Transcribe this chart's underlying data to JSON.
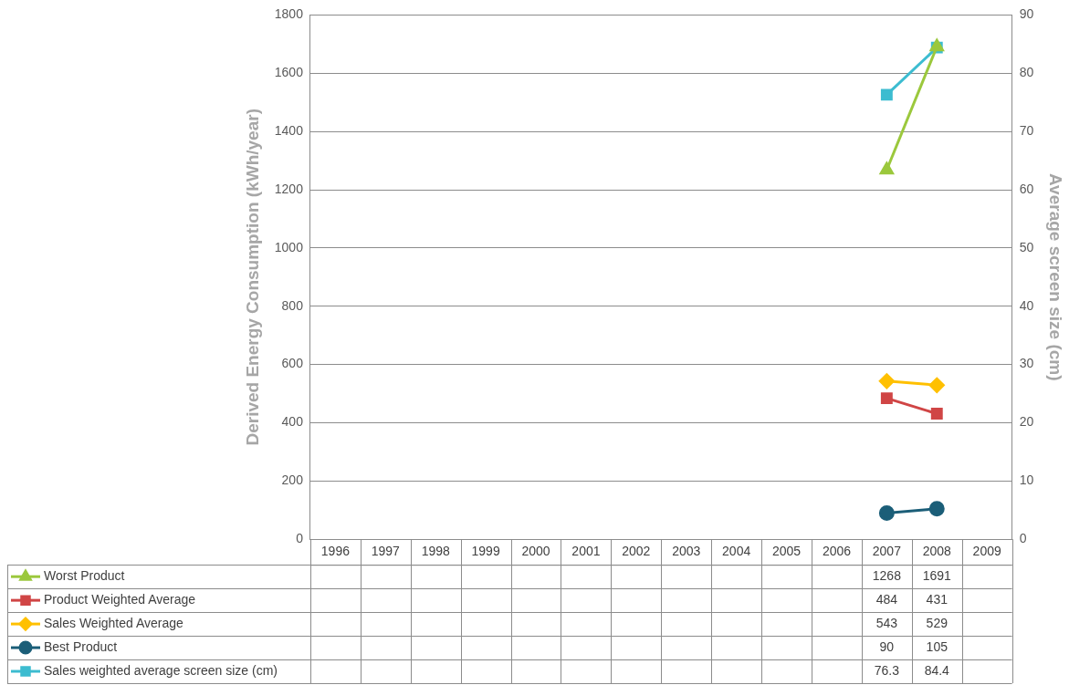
{
  "chart_data": {
    "type": "line",
    "categories": [
      "1996",
      "1997",
      "1998",
      "1999",
      "2000",
      "2001",
      "2002",
      "2003",
      "2004",
      "2005",
      "2006",
      "2007",
      "2008",
      "2009"
    ],
    "ylabel": "Derived Energy Consumption (kWh/year)",
    "y2label": "Average screen size (cm)",
    "ylim": [
      0,
      1800
    ],
    "yticks": [
      0,
      200,
      400,
      600,
      800,
      1000,
      1200,
      1400,
      1600,
      1800
    ],
    "y2lim": [
      0,
      90
    ],
    "y2ticks": [
      0,
      10,
      20,
      30,
      40,
      50,
      60,
      70,
      80,
      90
    ],
    "grid": "y",
    "legend": "bottom",
    "data_labels": true,
    "line_style": "solid",
    "series": [
      {
        "name": "Worst Product",
        "color": "#9bc83c",
        "marker": "triangle",
        "values": [
          null,
          null,
          null,
          null,
          null,
          null,
          null,
          null,
          null,
          null,
          null,
          1268,
          1691,
          null
        ]
      },
      {
        "name": "Product Weighted Average",
        "color": "#d04545",
        "marker": "square",
        "values": [
          null,
          null,
          null,
          null,
          null,
          null,
          null,
          null,
          null,
          null,
          null,
          484,
          431,
          null
        ]
      },
      {
        "name": "Sales Weighted Average",
        "color": "#ffc000",
        "marker": "diamond",
        "values": [
          null,
          null,
          null,
          null,
          null,
          null,
          null,
          null,
          null,
          null,
          null,
          543,
          529,
          null
        ]
      },
      {
        "name": "Best Product",
        "color": "#1b5e78",
        "marker": "circle",
        "values": [
          null,
          null,
          null,
          null,
          null,
          null,
          null,
          null,
          null,
          null,
          null,
          90,
          105,
          null
        ]
      },
      {
        "name": "Sales weighted average screen size (cm)",
        "color": "#3cbcd0",
        "marker": "square",
        "axis": "y2",
        "values": [
          null,
          null,
          null,
          null,
          null,
          null,
          null,
          null,
          null,
          null,
          null,
          76.3,
          84.4,
          null
        ]
      }
    ]
  }
}
